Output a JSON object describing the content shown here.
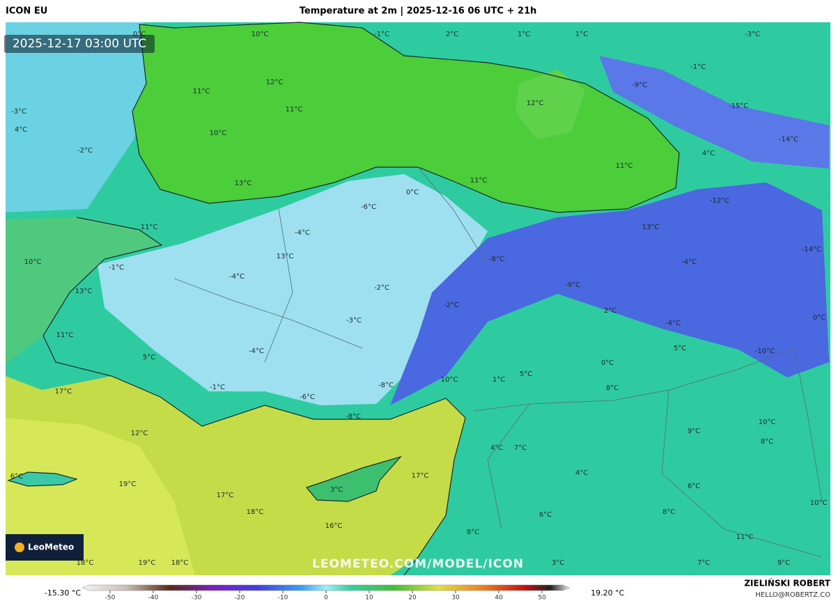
{
  "header": {
    "model": "ICON EU",
    "title": "Temperature at 2m | 2025-12-16 06 UTC + 21h"
  },
  "timestamp": "2025-12-17 03:00 UTC",
  "watermark": "LEOMETEO.COM/MODEL/ICON",
  "logo": "LeoMeteo",
  "map_labels": [
    "10°C",
    "-1°C",
    "2°C",
    "1°C",
    "1°C",
    "-3°C",
    "0°C",
    "11°C",
    "12°C",
    "11°C",
    "10°C",
    "12°C",
    "-1°C",
    "-9°C",
    "-15°C",
    "-14°C",
    "4°C",
    "11°C",
    "13°C",
    "11°C",
    "0°C",
    "-6°C",
    "-12°C",
    "-3°C",
    "4°C",
    "-2°C",
    "11°C",
    "-4°C",
    "13°C",
    "-14°C",
    "10°C",
    "-1°C",
    "13°C",
    "-8°C",
    "-4°C",
    "-4°C",
    "13°C",
    "-2°C",
    "-9°C",
    "-2°C",
    "2°C",
    "0°C",
    "-3°C",
    "-4°C",
    "11°C",
    "5°C",
    "-4°C",
    "5°C",
    "-10°C",
    "0°C",
    "10°C",
    "1°C",
    "5°C",
    "-1°C",
    "-8°C",
    "8°C",
    "17°C",
    "-6°C",
    "-8°C",
    "12°C",
    "9°C",
    "10°C",
    "4°C",
    "7°C",
    "8°C",
    "6°C",
    "19°C",
    "4°C",
    "17°C",
    "3°C",
    "6°C",
    "17°C",
    "18°C",
    "16°C",
    "6°C",
    "8°C",
    "10°C",
    "11°C",
    "8°C",
    "18°C",
    "19°C",
    "18°C",
    "3°C",
    "7°C",
    "9°C"
  ],
  "legend": {
    "min": "-15.30 °C",
    "max": "19.20 °C",
    "ticks": [
      -50,
      -40,
      -30,
      -20,
      -10,
      0,
      10,
      20,
      30,
      40,
      50
    ]
  },
  "credit": {
    "author": "ZIELIŃSKI ROBERT",
    "email": "HELLO@ROBERTZ.CO"
  }
}
